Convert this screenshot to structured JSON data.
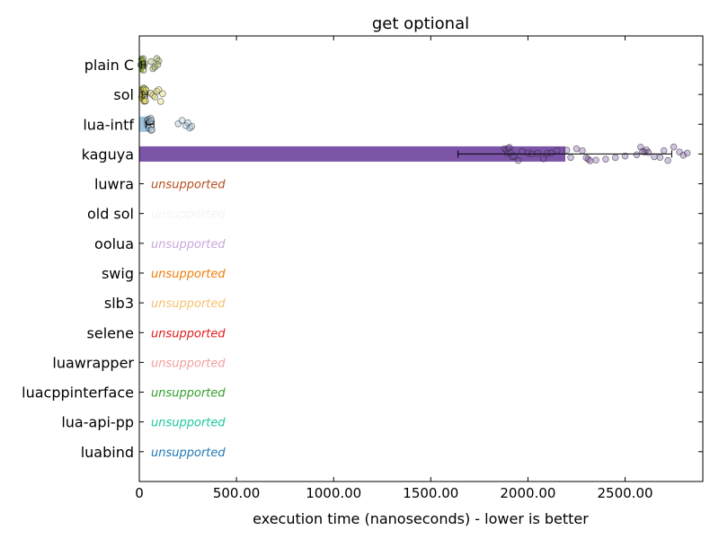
{
  "chart_data": {
    "type": "bar",
    "orientation": "horizontal",
    "title": "get optional",
    "xlabel": "execution time (nanoseconds) - lower is better",
    "ylabel": "",
    "xlim": [
      0,
      2900
    ],
    "xticks": [
      0,
      500,
      1000,
      1500,
      2000,
      2500
    ],
    "xtick_labels": [
      "0",
      "500.00",
      "1000.00",
      "1500.00",
      "2000.00",
      "2500.00"
    ],
    "grid": false,
    "unsupported_label": "unsupported",
    "categories": [
      "plain C",
      "sol",
      "lua-intf",
      "kaguya",
      "luwra",
      "old sol",
      "oolua",
      "swig",
      "slb3",
      "selene",
      "luawrapper",
      "luacppinterface",
      "lua-api-pp",
      "luabind"
    ],
    "series": [
      {
        "category": "plain C",
        "value": 20,
        "error": 10,
        "color": "#8aab3c",
        "supported": true,
        "samples": [
          8,
          10,
          12,
          14,
          16,
          18,
          20,
          22,
          24,
          26,
          60,
          70,
          80,
          90,
          95,
          100
        ]
      },
      {
        "category": "sol",
        "value": 28,
        "error": 14,
        "color": "#e0d85c",
        "supported": true,
        "samples": [
          12,
          14,
          16,
          18,
          20,
          22,
          24,
          26,
          28,
          30,
          32,
          35,
          60,
          70,
          80,
          90,
          100,
          110,
          120
        ]
      },
      {
        "category": "lua-intf",
        "value": 55,
        "error": 20,
        "color": "#9ec3dc",
        "supported": true,
        "samples": [
          40,
          42,
          45,
          48,
          50,
          52,
          55,
          58,
          60,
          62,
          65,
          200,
          220,
          240,
          250,
          260,
          270
        ]
      },
      {
        "category": "kaguya",
        "value": 2190,
        "error": 550,
        "color": "#7c54a8",
        "supported": true,
        "samples": [
          1880,
          1890,
          1895,
          1900,
          1905,
          1910,
          1920,
          1930,
          1950,
          1970,
          2000,
          2020,
          2050,
          2080,
          2100,
          2120,
          2150,
          2200,
          2220,
          2250,
          2280,
          2300,
          2310,
          2320,
          2350,
          2400,
          2450,
          2500,
          2560,
          2580,
          2590,
          2600,
          2610,
          2620,
          2650,
          2680,
          2700,
          2720,
          2750,
          2780,
          2800,
          2820
        ]
      },
      {
        "category": "luwra",
        "value": 0,
        "color": "#b4501e",
        "supported": false
      },
      {
        "category": "old sol",
        "value": 0,
        "color": "#f4f4f4",
        "supported": false
      },
      {
        "category": "oolua",
        "value": 0,
        "color": "#c8a8dc",
        "supported": false
      },
      {
        "category": "swig",
        "value": 0,
        "color": "#f07d0a",
        "supported": false
      },
      {
        "category": "slb3",
        "value": 0,
        "color": "#f8c070",
        "supported": false
      },
      {
        "category": "selene",
        "value": 0,
        "color": "#e31a1c",
        "supported": false
      },
      {
        "category": "luawrapper",
        "value": 0,
        "color": "#f4a0a0",
        "supported": false
      },
      {
        "category": "luacppinterface",
        "value": 0,
        "color": "#33a02c",
        "supported": false
      },
      {
        "category": "lua-api-pp",
        "value": 0,
        "color": "#1ec8a0",
        "supported": false
      },
      {
        "category": "luabind",
        "value": 0,
        "color": "#1f78b4",
        "supported": false
      }
    ]
  }
}
